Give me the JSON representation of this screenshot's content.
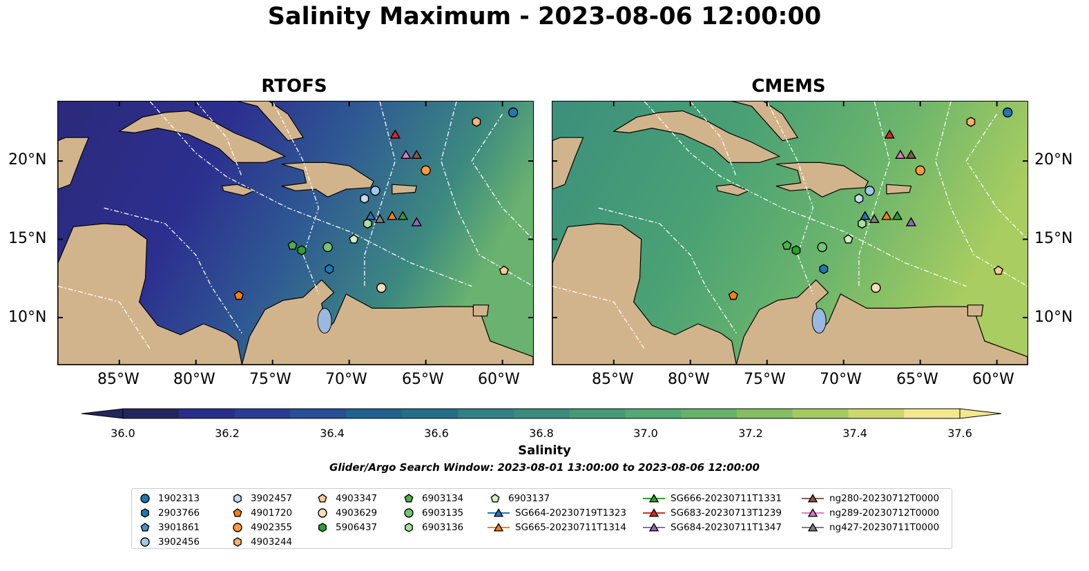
{
  "figure": {
    "title": "Salinity Maximum - 2023-08-06 12:00:00",
    "panels": [
      {
        "title": "RTOFS",
        "basin_color": "#2b2a7a",
        "shallow_color": "#2e7f8a"
      },
      {
        "title": "CMEMS",
        "basin_color": "#3b8f7c",
        "shallow_color": "#5fb070"
      }
    ],
    "lat_labels": [
      "20°N",
      "15°N",
      "10°N"
    ],
    "lon_labels": [
      "85°W",
      "80°W",
      "75°W",
      "70°W",
      "65°W",
      "60°W"
    ]
  },
  "colorbar": {
    "label": "Salinity",
    "ticks": [
      "36.0",
      "36.2",
      "36.4",
      "36.6",
      "36.8",
      "37.0",
      "37.2",
      "37.4",
      "37.6"
    ],
    "colors": [
      "#25255d",
      "#272e8c",
      "#2a3b98",
      "#284e98",
      "#1f628e",
      "#236f88",
      "#2f8184",
      "#3a8c7c",
      "#459a76",
      "#53a873",
      "#68b16c",
      "#85bd63",
      "#a4ca5e",
      "#cbd86a",
      "#f4e88d"
    ],
    "range": [
      36.0,
      37.6
    ]
  },
  "search_window": "Glider/Argo Search Window: 2023-08-01 13:00:00 to 2023-08-06 12:00:00",
  "legend": {
    "columns": [
      [
        {
          "label": "1902313",
          "marker": "circle",
          "color": "#1f77b4"
        },
        {
          "label": "2903766",
          "marker": "hexagon",
          "color": "#1f77b4"
        },
        {
          "label": "3901861",
          "marker": "pentagon",
          "color": "#4a90c8"
        },
        {
          "label": "3902456",
          "marker": "circle",
          "color": "#a0c8e8"
        }
      ],
      [
        {
          "label": "3902457",
          "marker": "hexagon",
          "color": "#c6dbef"
        },
        {
          "label": "4901720",
          "marker": "pentagon",
          "color": "#ff7f0e"
        },
        {
          "label": "4902355",
          "marker": "circle",
          "color": "#ff9a3c"
        },
        {
          "label": "4903244",
          "marker": "hexagon",
          "color": "#ffb070"
        }
      ],
      [
        {
          "label": "4903347",
          "marker": "pentagon",
          "color": "#ffc996"
        },
        {
          "label": "4903629",
          "marker": "circle",
          "color": "#ffdcb8"
        },
        {
          "label": "5906437",
          "marker": "hexagon",
          "color": "#2ca02c"
        }
      ],
      [
        {
          "label": "6903134",
          "marker": "pentagon",
          "color": "#4cb04c"
        },
        {
          "label": "6903135",
          "marker": "circle",
          "color": "#73c673"
        },
        {
          "label": "6903136",
          "marker": "hexagon",
          "color": "#a8e0a0"
        }
      ],
      [
        {
          "label": "6903137",
          "marker": "pentagon",
          "color": "#d0f0c0"
        },
        {
          "label": "SG664-20230719T1323",
          "marker": "triangle",
          "color": "#1f77b4",
          "line": true
        },
        {
          "label": "SG665-20230711T1314",
          "marker": "triangle",
          "color": "#ff7f0e",
          "line": true
        }
      ],
      [
        {
          "label": "SG666-20230711T1331",
          "marker": "triangle",
          "color": "#2ca02c",
          "line": true
        },
        {
          "label": "SG683-20230713T1239",
          "marker": "triangle",
          "color": "#d62728",
          "line": true
        },
        {
          "label": "SG684-20230711T1347",
          "marker": "triangle",
          "color": "#9467bd",
          "line": true
        }
      ],
      [
        {
          "label": "ng280-20230712T0000",
          "marker": "triangle",
          "color": "#8c564b",
          "line": true
        },
        {
          "label": "ng289-20230712T0000",
          "marker": "triangle",
          "color": "#e377c2",
          "line": true
        },
        {
          "label": "ng427-20230711T0000",
          "marker": "triangle",
          "color": "#7f7f7f",
          "line": true
        }
      ]
    ]
  },
  "observations": [
    {
      "id": "1902313",
      "marker": "circle",
      "color": "#1f77b4",
      "lon": -59.3,
      "lat": 23.1
    },
    {
      "id": "4903244",
      "marker": "hexagon",
      "color": "#ffb070",
      "lon": -61.7,
      "lat": 22.5
    },
    {
      "id": "4902355",
      "marker": "circle",
      "color": "#ff9a3c",
      "lon": -65.0,
      "lat": 19.4
    },
    {
      "id": "SG683-20230713T1239",
      "marker": "triangle",
      "color": "#d62728",
      "lon": -67.0,
      "lat": 21.7
    },
    {
      "id": "ng289-20230712T0000",
      "marker": "triangle",
      "color": "#e377c2",
      "lon": -66.3,
      "lat": 20.4
    },
    {
      "id": "ng280-20230712T0000",
      "marker": "triangle",
      "color": "#8c564b",
      "lon": -65.6,
      "lat": 20.4
    },
    {
      "id": "3902456",
      "marker": "circle",
      "color": "#a0c8e8",
      "lon": -68.3,
      "lat": 18.1
    },
    {
      "id": "3902457",
      "marker": "hexagon",
      "color": "#c6dbef",
      "lon": -69.0,
      "lat": 17.6
    },
    {
      "id": "SG664-20230719T1323",
      "marker": "triangle",
      "color": "#1f77b4",
      "lon": -68.6,
      "lat": 16.5
    },
    {
      "id": "ng427-20230711T0000",
      "marker": "triangle",
      "color": "#7f7f7f",
      "lon": -68.0,
      "lat": 16.3
    },
    {
      "id": "SG665-20230711T1314",
      "marker": "triangle",
      "color": "#ff7f0e",
      "lon": -67.2,
      "lat": 16.5
    },
    {
      "id": "SG666-20230711T1331",
      "marker": "triangle",
      "color": "#2ca02c",
      "lon": -66.5,
      "lat": 16.5
    },
    {
      "id": "SG684-20230711T1347",
      "marker": "triangle",
      "color": "#9467bd",
      "lon": -65.6,
      "lat": 16.1
    },
    {
      "id": "6903136",
      "marker": "hexagon",
      "color": "#a8e0a0",
      "lon": -68.8,
      "lat": 16.0
    },
    {
      "id": "6903137",
      "marker": "pentagon",
      "color": "#d0f0c0",
      "lon": -69.7,
      "lat": 15.0
    },
    {
      "id": "6903134",
      "marker": "pentagon",
      "color": "#4cb04c",
      "lon": -73.7,
      "lat": 14.6
    },
    {
      "id": "5906437",
      "marker": "hexagon",
      "color": "#2ca02c",
      "lon": -73.1,
      "lat": 14.3
    },
    {
      "id": "6903135",
      "marker": "circle",
      "color": "#73c673",
      "lon": -71.4,
      "lat": 14.5
    },
    {
      "id": "2903766",
      "marker": "hexagon",
      "color": "#1f77b4",
      "lon": -71.3,
      "lat": 13.1
    },
    {
      "id": "4903629",
      "marker": "circle",
      "color": "#ffdcb8",
      "lon": -67.9,
      "lat": 11.9
    },
    {
      "id": "4903347",
      "marker": "pentagon",
      "color": "#ffc996",
      "lon": -59.9,
      "lat": 13.0
    },
    {
      "id": "4901720",
      "marker": "pentagon",
      "color": "#ff7f0e",
      "lon": -77.2,
      "lat": 11.4
    }
  ]
}
